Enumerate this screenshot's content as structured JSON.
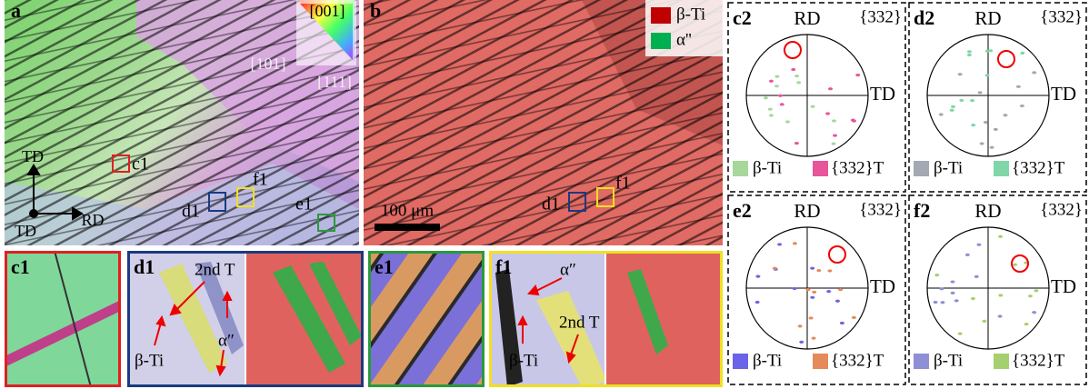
{
  "map_a": {
    "label": "a",
    "ipf": [
      "[001]",
      "[101]",
      "[111]"
    ],
    "axes": [
      "TD",
      "RD",
      "TD"
    ],
    "boxes": [
      "c1",
      "d1",
      "e1",
      "f1"
    ]
  },
  "map_b": {
    "label": "b",
    "legend": [
      "β-Ti",
      "α''"
    ],
    "boxes": [
      "d1",
      "f1"
    ],
    "scale_bar": "100 μm"
  },
  "insets": [
    {
      "label": "c1"
    },
    {
      "label": "d1",
      "annotations": [
        "2nd T",
        "α″",
        "β-Ti"
      ]
    },
    {
      "label": "e1"
    },
    {
      "label": "f1",
      "annotations": [
        "α″",
        "β-Ti",
        "2nd T"
      ]
    }
  ],
  "pole_figures": [
    {
      "label": "c2",
      "rd": "RD",
      "td": "TD",
      "plane": "{332}",
      "legend": [
        "β-Ti",
        "{332}T"
      ],
      "colors": [
        "#a6d89a",
        "#e8559a"
      ]
    },
    {
      "label": "d2",
      "rd": "RD",
      "td": "TD",
      "plane": "{332}",
      "legend": [
        "β-Ti",
        "{332}T"
      ],
      "colors": [
        "#a3a8b2",
        "#7fd6a8"
      ]
    },
    {
      "label": "e2",
      "rd": "RD",
      "td": "TD",
      "plane": "{332}",
      "legend": [
        "β-Ti",
        "{332}T"
      ],
      "colors": [
        "#6b63e8",
        "#e58a5a"
      ]
    },
    {
      "label": "f2",
      "rd": "RD",
      "td": "TD",
      "plane": "{332}",
      "legend": [
        "β-Ti",
        "{332}T"
      ],
      "colors": [
        "#8f8fd6",
        "#a6cf6f"
      ]
    }
  ]
}
